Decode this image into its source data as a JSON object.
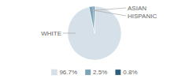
{
  "chart_data": {
    "type": "pie",
    "categories": [
      "WHITE",
      "ASIAN",
      "HISPANIC"
    ],
    "values": [
      96.7,
      2.5,
      0.8
    ],
    "value_labels": [
      "96.7%",
      "2.5%",
      "0.8%"
    ],
    "colors": [
      "#d6e0e8",
      "#7aa4b8",
      "#2e5f7a"
    ],
    "legend": "bottom"
  }
}
